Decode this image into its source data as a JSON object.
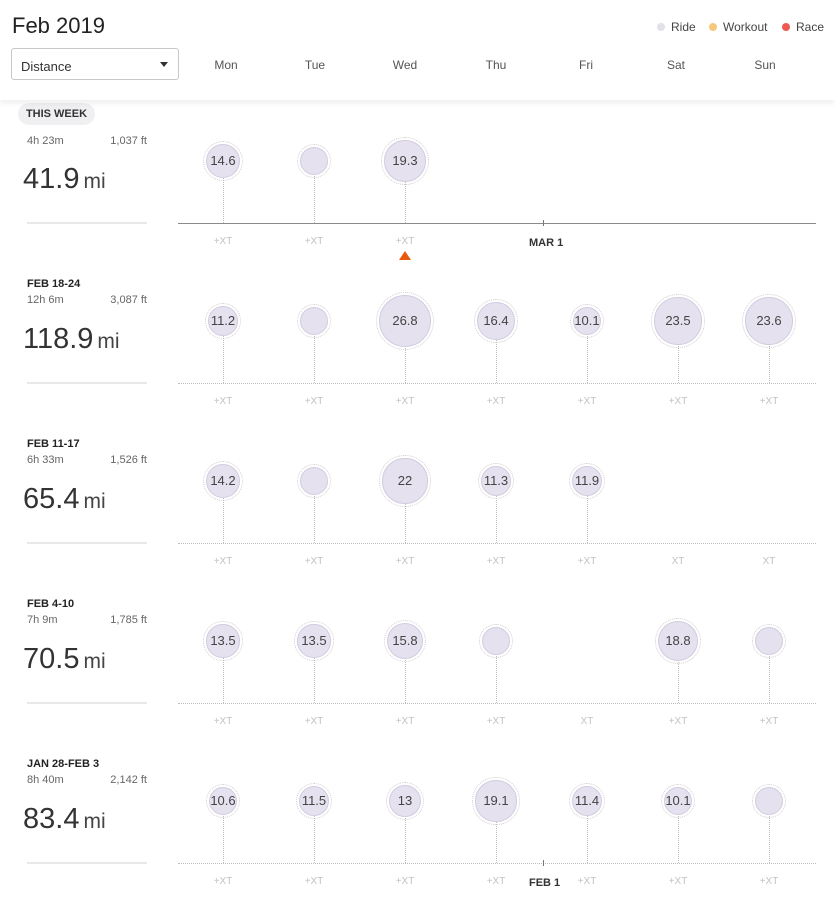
{
  "header": {
    "month_title": "Feb 2019",
    "metric_select": {
      "value": "Distance"
    },
    "days": [
      "Mon",
      "Tue",
      "Wed",
      "Thu",
      "Fri",
      "Sat",
      "Sun"
    ],
    "legend": [
      {
        "label": "Ride",
        "color": "#e3e0ea"
      },
      {
        "label": "Workout",
        "color": "#f5c87a"
      },
      {
        "label": "Race",
        "color": "#ee5a52"
      }
    ]
  },
  "weeks": [
    {
      "range": "THIS WEEK",
      "pill": true,
      "time": "4h 23m",
      "elevation": "1,037 ft",
      "distance": "41.9",
      "unit": "mi",
      "baseline": "solid",
      "days": [
        {
          "value": "14.6",
          "xt": "+XT"
        },
        {
          "value": "",
          "xt": "+XT"
        },
        {
          "value": "19.3",
          "xt": "+XT"
        },
        null,
        null,
        null,
        null
      ],
      "marker": "MAR 1",
      "today_index": 2
    },
    {
      "range": "FEB 18-24",
      "time": "12h 6m",
      "elevation": "3,087 ft",
      "distance": "118.9",
      "unit": "mi",
      "days": [
        {
          "value": "11.2",
          "xt": "+XT"
        },
        {
          "value": "",
          "xt": "+XT"
        },
        {
          "value": "26.8",
          "xt": "+XT"
        },
        {
          "value": "16.4",
          "xt": "+XT"
        },
        {
          "value": "10.1",
          "xt": "+XT"
        },
        {
          "value": "23.5",
          "xt": "+XT"
        },
        {
          "value": "23.6",
          "xt": "+XT"
        }
      ]
    },
    {
      "range": "FEB 11-17",
      "time": "6h 33m",
      "elevation": "1,526 ft",
      "distance": "65.4",
      "unit": "mi",
      "days": [
        {
          "value": "14.2",
          "xt": "+XT"
        },
        {
          "value": "",
          "xt": "+XT"
        },
        {
          "value": "22",
          "xt": "+XT"
        },
        {
          "value": "11.3",
          "xt": "+XT"
        },
        {
          "value": "11.9",
          "xt": "+XT"
        },
        {
          "value": null,
          "xt": "XT"
        },
        {
          "value": null,
          "xt": "XT"
        }
      ]
    },
    {
      "range": "FEB 4-10",
      "time": "7h 9m",
      "elevation": "1,785 ft",
      "distance": "70.5",
      "unit": "mi",
      "days": [
        {
          "value": "13.5",
          "xt": "+XT"
        },
        {
          "value": "13.5",
          "xt": "+XT"
        },
        {
          "value": "15.8",
          "xt": "+XT"
        },
        {
          "value": "",
          "xt": "+XT"
        },
        {
          "value": null,
          "xt": "XT"
        },
        {
          "value": "18.8",
          "xt": "+XT"
        },
        {
          "value": "",
          "xt": "+XT"
        }
      ]
    },
    {
      "range": "JAN 28-FEB 3",
      "time": "8h 40m",
      "elevation": "2,142 ft",
      "distance": "83.4",
      "unit": "mi",
      "days": [
        {
          "value": "10.6",
          "xt": "+XT"
        },
        {
          "value": "11.5",
          "xt": "+XT"
        },
        {
          "value": "13",
          "xt": "+XT"
        },
        {
          "value": "19.1",
          "xt": "+XT"
        },
        {
          "value": "11.4",
          "xt": "+XT"
        },
        {
          "value": "10.1",
          "xt": "+XT"
        },
        {
          "value": "",
          "xt": "+XT"
        }
      ],
      "marker": "FEB 1"
    }
  ]
}
